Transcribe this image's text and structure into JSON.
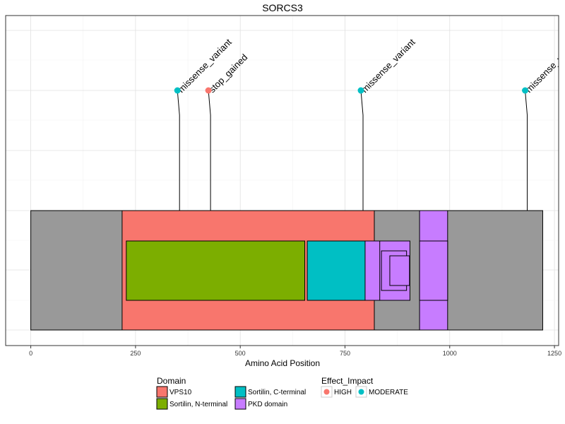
{
  "chart_data": {
    "type": "lollipop",
    "title": "SORCS3",
    "xlabel": "Amino Acid Position",
    "xlim": [
      -60,
      1260
    ],
    "xticks": [
      0,
      250,
      500,
      750,
      1000,
      1250
    ],
    "protein_length": 1222,
    "domains": [
      {
        "name": "VPS10",
        "start": 218,
        "end": 820,
        "tier": 0,
        "color": "#F8766D"
      },
      {
        "name": "Sortilin, N-terminal",
        "start": 228,
        "end": 654,
        "tier": 1,
        "color": "#7CAE00"
      },
      {
        "name": "Sortilin, C-terminal",
        "start": 660,
        "end": 815,
        "tier": 1,
        "color": "#00BFC4"
      },
      {
        "name": "PKD domain",
        "start": 798,
        "end": 836,
        "tier": 1,
        "color": "#C77CFF"
      },
      {
        "name": "PKD domain",
        "start": 833,
        "end": 905,
        "tier": 1,
        "color": "#C77CFF"
      },
      {
        "name": "PKD domain",
        "start": 837,
        "end": 897,
        "tier": 2,
        "color": "#C77CFF"
      },
      {
        "name": "PKD domain",
        "start": 857,
        "end": 904,
        "tier": 3,
        "color": "#C77CFF"
      },
      {
        "name": "PKD domain",
        "start": 928,
        "end": 995,
        "tier": 0,
        "color": "#C77CFF"
      },
      {
        "name": "PKD domain",
        "start": 928,
        "end": 995,
        "tier": 1,
        "color": "#C77CFF"
      }
    ],
    "variants": [
      {
        "position": 350,
        "label": "missense_variant",
        "impact": "MODERATE"
      },
      {
        "position": 424,
        "label": "stop_gained",
        "impact": "HIGH"
      },
      {
        "position": 788,
        "label": "missense_variant",
        "impact": "MODERATE"
      },
      {
        "position": 1180,
        "label": "missense_variant",
        "impact": "MODERATE"
      }
    ],
    "impact_colors": {
      "HIGH": "#F8766D",
      "MODERATE": "#00BFC4"
    },
    "backbone_color": "#999999",
    "grid": true,
    "legend_position": "bottom",
    "legend": {
      "domain_title": "Domain",
      "domain_entries": [
        {
          "name": "VPS10",
          "color": "#F8766D"
        },
        {
          "name": "Sortilin, N-terminal",
          "color": "#7CAE00"
        },
        {
          "name": "Sortilin, C-terminal",
          "color": "#00BFC4"
        },
        {
          "name": "PKD domain",
          "color": "#C77CFF"
        }
      ],
      "impact_title": "Effect_Impact",
      "impact_entries": [
        {
          "name": "HIGH",
          "color": "#F8766D"
        },
        {
          "name": "MODERATE",
          "color": "#00BFC4"
        }
      ]
    }
  }
}
